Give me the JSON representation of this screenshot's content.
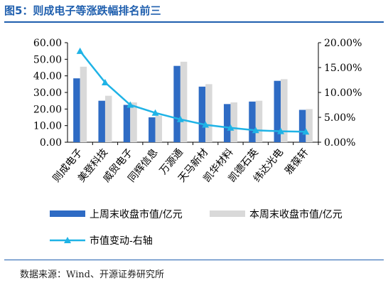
{
  "title": "图5：则成电子等涨跌幅排名前三",
  "source": "数据来源：Wind、开源证券研究所",
  "chart_data": {
    "type": "bar",
    "categories": [
      "则成电子",
      "美登科技",
      "威贸电子",
      "同辉信息",
      "万源通",
      "天马新材",
      "凯华材料",
      "凯德石英",
      "纬达光电",
      "雅葆轩"
    ],
    "series": [
      {
        "name": "上周末收盘市值/亿元",
        "type": "bar",
        "axis": "left",
        "color": "#2e6bc4",
        "values": [
          38.5,
          25.0,
          22.5,
          15.0,
          46.0,
          33.5,
          23.0,
          24.5,
          37.0,
          19.5
        ]
      },
      {
        "name": "本周末收盘市值/亿元",
        "type": "bar",
        "axis": "left",
        "color": "#d9d9d9",
        "values": [
          45.5,
          28.0,
          24.0,
          16.0,
          48.5,
          35.0,
          24.0,
          25.0,
          38.0,
          20.0
        ]
      },
      {
        "name": "市值变动-右轴",
        "type": "line",
        "axis": "right",
        "color": "#1fb3e6",
        "values": [
          18.3,
          12.0,
          7.5,
          5.9,
          4.6,
          3.5,
          2.9,
          2.4,
          2.2,
          2.1
        ]
      }
    ],
    "y_left": {
      "min": 0,
      "max": 60,
      "ticks": [
        "0.00",
        "10.00",
        "20.00",
        "30.00",
        "40.00",
        "50.00",
        "60.00"
      ]
    },
    "y_right": {
      "min": 0,
      "max": 20,
      "ticks": [
        "0.00%",
        "5.00%",
        "10.00%",
        "15.00%",
        "20.00%"
      ]
    },
    "legend": "bottom",
    "grid": false
  }
}
